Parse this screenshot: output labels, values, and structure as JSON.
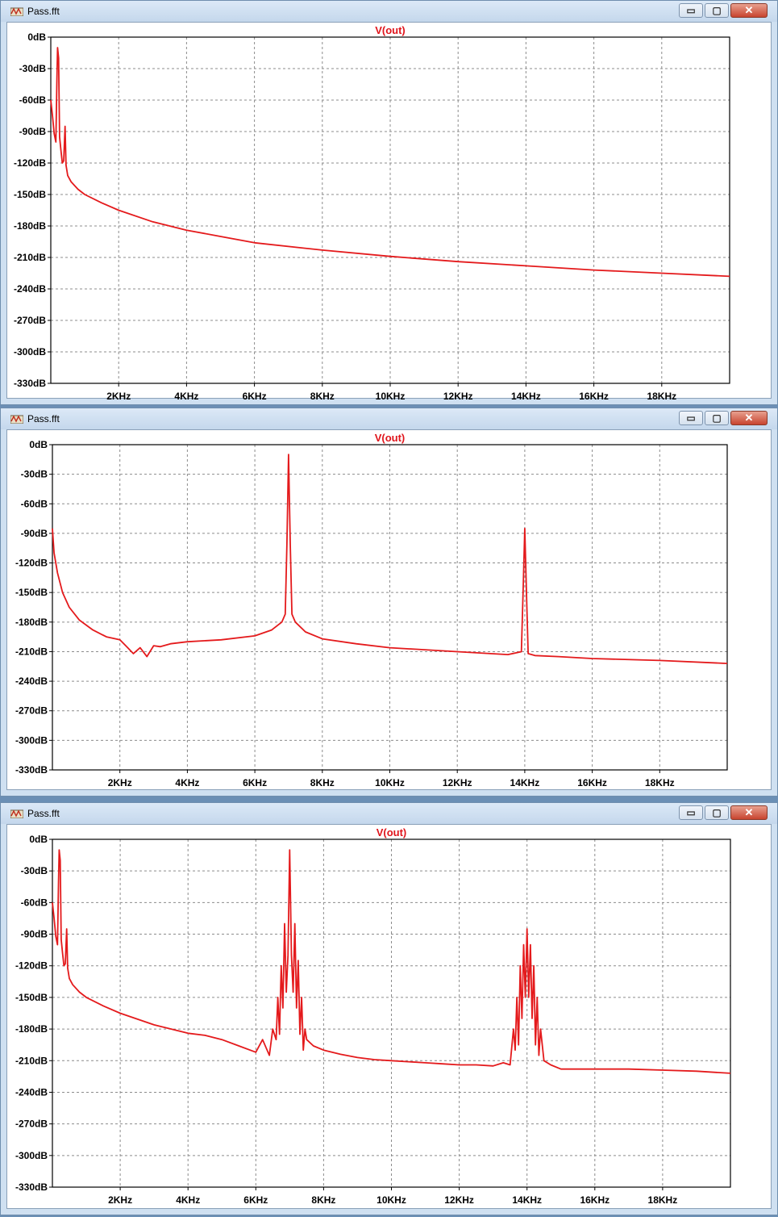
{
  "colors": {
    "trace": "#e41a1c",
    "grid": "#8c8c8c",
    "frame": "#000000"
  },
  "windows": [
    {
      "title": "Pass.fft",
      "buttons": {
        "minimize": "▭",
        "restore": "▢",
        "close": "✕"
      },
      "chart_data": {
        "type": "line",
        "title": "V(out)",
        "xlabel": "",
        "ylabel": "",
        "xlim": [
          0,
          20000
        ],
        "ylim": [
          -330,
          0
        ],
        "x_ticks": [
          "2KHz",
          "4KHz",
          "6KHz",
          "8KHz",
          "10KHz",
          "12KHz",
          "14KHz",
          "16KHz",
          "18KHz"
        ],
        "y_ticks": [
          "0dB",
          "-30dB",
          "-60dB",
          "-90dB",
          "-120dB",
          "-150dB",
          "-180dB",
          "-210dB",
          "-240dB",
          "-270dB",
          "-300dB",
          "-330dB"
        ],
        "grid": true,
        "series": [
          {
            "x": [
              0,
              50,
              100,
              150,
              180,
              200,
              230,
              260,
              300,
              340,
              380,
              420,
              450,
              500,
              600,
              800,
              1000,
              1500,
              2000,
              3000,
              4000,
              5000,
              6000,
              8000,
              10000,
              12000,
              14000,
              16000,
              18000,
              20000
            ],
            "y": [
              -60,
              -75,
              -92,
              -100,
              -40,
              -10,
              -20,
              -95,
              -108,
              -120,
              -118,
              -85,
              -122,
              -132,
              -138,
              -145,
              -150,
              -158,
              -165,
              -176,
              -184,
              -190,
              -196,
              -203,
              -209,
              -214,
              -218,
              -222,
              -225,
              -228
            ]
          }
        ]
      }
    },
    {
      "title": "Pass.fft",
      "buttons": {
        "minimize": "▭",
        "restore": "▢",
        "close": "✕"
      },
      "chart_data": {
        "type": "line",
        "title": "V(out)",
        "xlabel": "",
        "ylabel": "",
        "xlim": [
          0,
          20000
        ],
        "ylim": [
          -330,
          0
        ],
        "x_ticks": [
          "2KHz",
          "4KHz",
          "6KHz",
          "8KHz",
          "10KHz",
          "12KHz",
          "14KHz",
          "16KHz",
          "18KHz"
        ],
        "y_ticks": [
          "0dB",
          "-30dB",
          "-60dB",
          "-90dB",
          "-120dB",
          "-150dB",
          "-180dB",
          "-210dB",
          "-240dB",
          "-270dB",
          "-300dB",
          "-330dB"
        ],
        "grid": true,
        "series": [
          {
            "x": [
              0,
              50,
              150,
              300,
              500,
              800,
              1200,
              1600,
              2000,
              2200,
              2400,
              2600,
              2800,
              3000,
              3200,
              3500,
              4000,
              5000,
              6000,
              6500,
              6800,
              6900,
              6950,
              7000,
              7050,
              7100,
              7200,
              7500,
              8000,
              9000,
              10000,
              12000,
              13500,
              13900,
              13950,
              14000,
              14050,
              14100,
              14300,
              15000,
              16000,
              18000,
              20000
            ],
            "y": [
              -85,
              -110,
              -130,
              -150,
              -165,
              -178,
              -188,
              -195,
              -198,
              -205,
              -212,
              -206,
              -215,
              -204,
              -205,
              -202,
              -200,
              -198,
              -194,
              -188,
              -180,
              -172,
              -100,
              -10,
              -100,
              -172,
              -180,
              -190,
              -197,
              -202,
              -206,
              -210,
              -213,
              -210,
              -150,
              -85,
              -150,
              -212,
              -214,
              -215,
              -217,
              -219,
              -222
            ]
          }
        ]
      }
    },
    {
      "title": "Pass.fft",
      "buttons": {
        "minimize": "▭",
        "restore": "▢",
        "close": "✕"
      },
      "chart_data": {
        "type": "line",
        "title": "V(out)",
        "xlabel": "",
        "ylabel": "",
        "xlim": [
          0,
          20000
        ],
        "ylim": [
          -330,
          0
        ],
        "x_ticks": [
          "2KHz",
          "4KHz",
          "6KHz",
          "8KHz",
          "10KHz",
          "12KHz",
          "14KHz",
          "16KHz",
          "18KHz"
        ],
        "y_ticks": [
          "0dB",
          "-30dB",
          "-60dB",
          "-90dB",
          "-120dB",
          "-150dB",
          "-180dB",
          "-210dB",
          "-240dB",
          "-270dB",
          "-300dB",
          "-330dB"
        ],
        "grid": true,
        "series": [
          {
            "x": [
              0,
              50,
              100,
              150,
              180,
              200,
              230,
              260,
              300,
              340,
              380,
              420,
              450,
              500,
              600,
              800,
              1000,
              1500,
              2000,
              3000,
              4000,
              4500,
              5000,
              5500,
              6000,
              6200,
              6400,
              6500,
              6600,
              6650,
              6700,
              6750,
              6800,
              6850,
              6900,
              6950,
              7000,
              7050,
              7100,
              7150,
              7200,
              7250,
              7300,
              7350,
              7400,
              7450,
              7500,
              7700,
              8000,
              8500,
              9000,
              9500,
              10000,
              10500,
              11000,
              11500,
              12000,
              12500,
              13000,
              13300,
              13500,
              13600,
              13650,
              13700,
              13750,
              13800,
              13850,
              13900,
              13950,
              14000,
              14050,
              14100,
              14150,
              14200,
              14250,
              14300,
              14350,
              14400,
              14500,
              14700,
              15000,
              16000,
              17000,
              18000,
              19000,
              20000
            ],
            "y": [
              -60,
              -75,
              -92,
              -100,
              -40,
              -10,
              -20,
              -95,
              -108,
              -120,
              -118,
              -85,
              -122,
              -132,
              -138,
              -145,
              -150,
              -158,
              -165,
              -176,
              -184,
              -186,
              -190,
              -196,
              -202,
              -190,
              -205,
              -180,
              -190,
              -150,
              -185,
              -120,
              -160,
              -80,
              -145,
              -110,
              -10,
              -110,
              -145,
              -80,
              -160,
              -115,
              -185,
              -150,
              -200,
              -180,
              -190,
              -196,
              -200,
              -204,
              -207,
              -209,
              -210,
              -211,
              -212,
              -213,
              -214,
              -214,
              -215,
              -212,
              -214,
              -180,
              -200,
              -150,
              -195,
              -120,
              -170,
              -100,
              -150,
              -85,
              -150,
              -100,
              -170,
              -120,
              -195,
              -150,
              -205,
              -180,
              -210,
              -214,
              -218,
              -218,
              -218,
              -219,
              -220,
              -222
            ]
          }
        ]
      }
    }
  ]
}
